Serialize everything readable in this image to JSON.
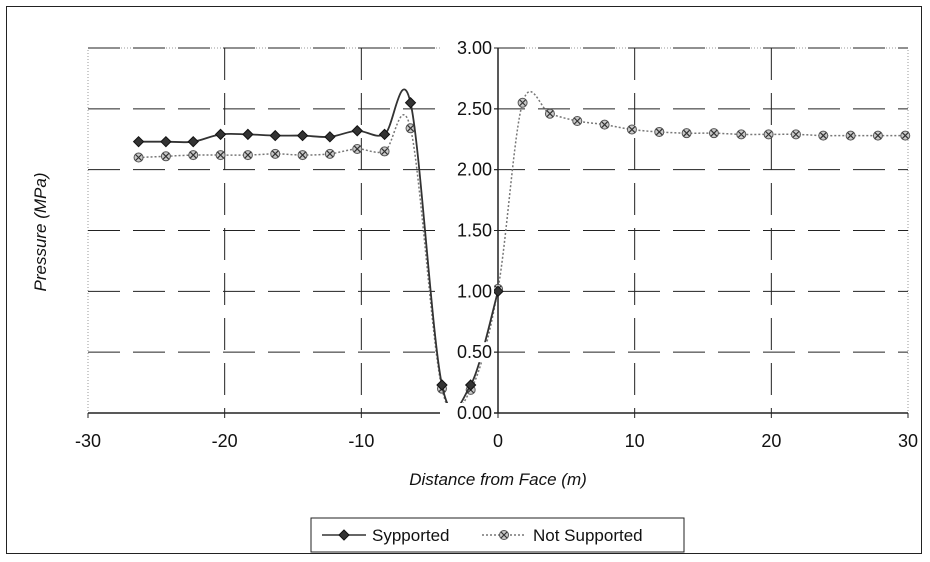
{
  "chart_data": {
    "type": "line",
    "title": "",
    "xlabel": "Distance from Face (m)",
    "ylabel": "Pressure (MPa)",
    "xlim": [
      -30,
      30
    ],
    "ylim": [
      0,
      3
    ],
    "x_ticks": [
      -30,
      -20,
      -10,
      0,
      10,
      20,
      30
    ],
    "x_tick_labels": [
      "-30",
      "-20",
      "-10",
      "0",
      "10",
      "20",
      "30"
    ],
    "y_ticks": [
      0,
      0.5,
      1,
      1.5,
      2,
      2.5,
      3
    ],
    "y_tick_labels": [
      "0.00",
      "0.50",
      "1.00",
      "1.50",
      "2.00",
      "2.50",
      "3.00"
    ],
    "grid": true,
    "legend_position": "bottom-center",
    "series": [
      {
        "name": "Sypported",
        "color": "#333333",
        "marker": "diamond",
        "line_style": "solid",
        "x": [
          -26.3,
          -24.3,
          -22.3,
          -20.3,
          -18.3,
          -16.3,
          -14.3,
          -12.3,
          -10.3,
          -8.3,
          -6.4,
          -4.1,
          -2.0,
          0.0
        ],
        "y": [
          2.23,
          2.23,
          2.23,
          2.29,
          2.29,
          2.28,
          2.28,
          2.27,
          2.32,
          2.29,
          2.55,
          0.23,
          0.23,
          1.0
        ]
      },
      {
        "name": "Not Supported",
        "color": "#777777",
        "marker": "x-circle",
        "line_style": "dotted",
        "x": [
          -26.3,
          -24.3,
          -22.3,
          -20.3,
          -18.3,
          -16.3,
          -14.3,
          -12.3,
          -10.3,
          -8.3,
          -6.4,
          -4.1,
          -2.0,
          0.0,
          1.8,
          3.8,
          5.8,
          7.8,
          9.8,
          11.8,
          13.8,
          15.8,
          17.8,
          19.8,
          21.8,
          23.8,
          25.8,
          27.8,
          29.8
        ],
        "y": [
          2.1,
          2.11,
          2.12,
          2.12,
          2.12,
          2.13,
          2.12,
          2.13,
          2.17,
          2.15,
          2.34,
          0.2,
          0.19,
          1.02,
          2.55,
          2.46,
          2.4,
          2.37,
          2.33,
          2.31,
          2.3,
          2.3,
          2.29,
          2.29,
          2.29,
          2.28,
          2.28,
          2.28,
          2.28
        ]
      }
    ]
  }
}
